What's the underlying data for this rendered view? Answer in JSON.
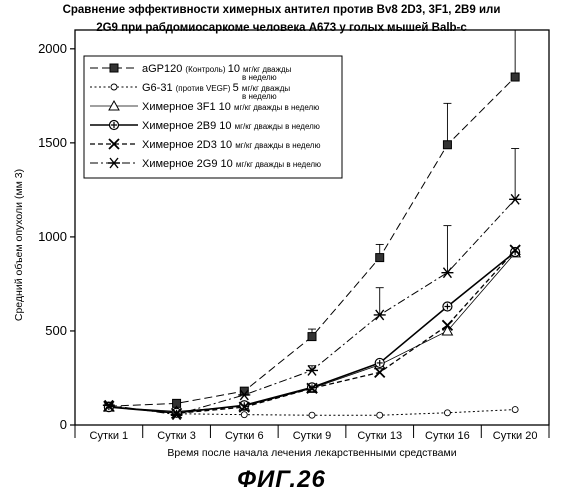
{
  "title": {
    "line1": "Сравнение эффективности химерных антител против Bv8 2D3, 3F1, 2B9 или",
    "line2": "2G9 при рабдомиосаркоме человека A673 у голых мышей Balb-c"
  },
  "figure_label": "ФИГ.26",
  "chart_data": {
    "type": "line",
    "xlabel": "Время после начала лечения лекарственными средствами",
    "ylabel": "Средний объем опухоли (мм 3)",
    "categories": [
      "Сутки  1",
      "Сутки  3",
      "Сутки  6",
      "Сутки  9",
      "Сутки 13",
      "Сутки 16",
      "Сутки 20"
    ],
    "ylim": [
      0,
      2100
    ],
    "yticks": [
      0,
      500,
      1000,
      1500,
      2000
    ],
    "ytick_labels": [
      "0",
      "500",
      "1000",
      "1500",
      "2000"
    ],
    "legend_position": "top-left",
    "series": [
      {
        "name": "aGP120 (Контроль) 10 мг/кг дважды в неделю",
        "legend_parts": [
          "aGP120",
          "(Контроль)",
          "10",
          "мг/кг дважды",
          "в неделю"
        ],
        "marker": "square",
        "dash": "long-dash",
        "values": [
          100,
          115,
          180,
          470,
          890,
          1490,
          1850
        ],
        "error_up": [
          0,
          0,
          0,
          40,
          70,
          220,
          260
        ]
      },
      {
        "name": "G6-31 (против VEGF) 5 мг/кг дважды в неделю",
        "legend_parts": [
          "G6-31",
          "(против VEGF)",
          "5",
          "мг/кг дважды",
          "в неделю"
        ],
        "marker": "circle",
        "dash": "dotted",
        "values": [
          100,
          60,
          55,
          52,
          52,
          65,
          82
        ],
        "error_up": [
          0,
          0,
          0,
          0,
          0,
          0,
          0
        ]
      },
      {
        "name": "Химерное 3F1 10 мг/кг дважды в неделю",
        "legend_parts": [
          "Химерное",
          "3F1",
          "10",
          "мг/кг дважды в неделю"
        ],
        "marker": "triangle",
        "dash": "thin",
        "values": [
          95,
          72,
          100,
          195,
          320,
          500,
          915
        ],
        "error_up": [
          0,
          0,
          0,
          0,
          0,
          0,
          0
        ]
      },
      {
        "name": "Химерное 2B9 10 мг/кг дважды в неделю",
        "legend_parts": [
          "Химерное",
          "2B9",
          "10",
          "мг/кг дважды в неделю"
        ],
        "marker": "plus-circle",
        "dash": "solid",
        "values": [
          95,
          65,
          105,
          200,
          330,
          630,
          920
        ],
        "error_up": [
          0,
          0,
          0,
          0,
          0,
          0,
          0
        ]
      },
      {
        "name": "Химерное 2D3 10 мг/кг дважды в неделю",
        "legend_parts": [
          "Химерное",
          "2D3",
          "10",
          "мг/кг дважды в неделю"
        ],
        "marker": "x",
        "dash": "short-dash",
        "values": [
          100,
          62,
          95,
          195,
          280,
          530,
          930
        ],
        "error_up": [
          0,
          0,
          0,
          0,
          0,
          0,
          0
        ]
      },
      {
        "name": "Химерное 2G9 10 мг/кг дважды в неделю",
        "legend_parts": [
          "Химерное",
          "2G9",
          "10",
          "мг/кг дважды в неделю"
        ],
        "marker": "asterisk",
        "dash": "dash-dot",
        "values": [
          105,
          55,
          160,
          290,
          585,
          810,
          1200
        ],
        "error_up": [
          0,
          0,
          0,
          25,
          145,
          250,
          270
        ]
      }
    ]
  }
}
